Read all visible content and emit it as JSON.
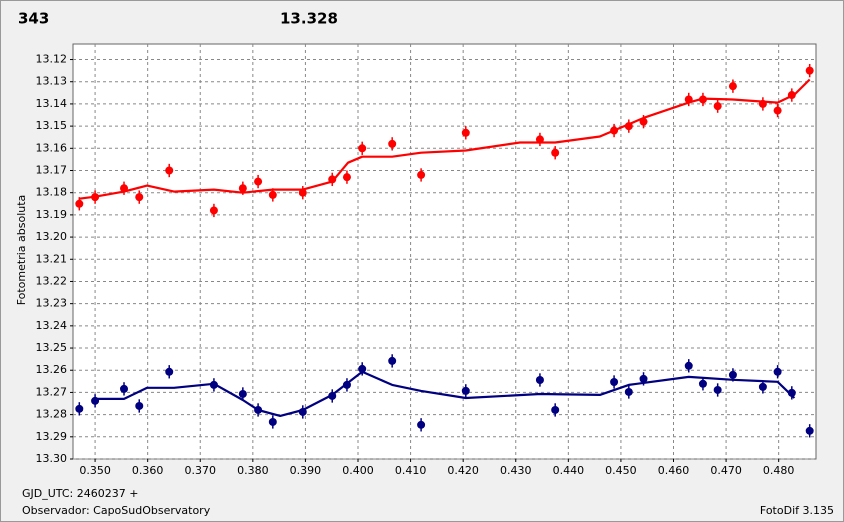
{
  "chart_data": {
    "type": "scatter",
    "annotations": [
      {
        "text": "343",
        "color": "#ff0000"
      },
      {
        "text": "13.328",
        "color": "#000080"
      },
      {
        "text": "GJD_UTC: 2460237 +"
      },
      {
        "text": "Observador: CapoSudObservatory"
      },
      {
        "text": "FotoDif 3.135"
      }
    ],
    "y_label": "Fotometria absoluta",
    "xlim": [
      0.3458,
      0.4871
    ],
    "ylim": [
      13.113,
      13.3
    ],
    "y_inverted": true,
    "grid": true,
    "xticks": [
      {
        "value": 0.35,
        "label": "0.350"
      },
      {
        "value": 0.36,
        "label": "0.360"
      },
      {
        "value": 0.37,
        "label": "0.370"
      },
      {
        "value": 0.38,
        "label": "0.380"
      },
      {
        "value": 0.39,
        "label": "0.390"
      },
      {
        "value": 0.4,
        "label": "0.400"
      },
      {
        "value": 0.41,
        "label": "0.410"
      },
      {
        "value": 0.42,
        "label": "0.420"
      },
      {
        "value": 0.43,
        "label": "0.430"
      },
      {
        "value": 0.44,
        "label": "0.440"
      },
      {
        "value": 0.45,
        "label": "0.450"
      },
      {
        "value": 0.46,
        "label": "0.460"
      },
      {
        "value": 0.47,
        "label": "0.470"
      },
      {
        "value": 0.48,
        "label": "0.480"
      }
    ],
    "yticks": [
      13.12,
      13.13,
      13.14,
      13.15,
      13.16,
      13.17,
      13.18,
      13.19,
      {
        "value": 13.2,
        "label": "13.20"
      },
      13.21,
      13.22,
      13.23,
      13.24,
      13.25,
      13.26,
      13.27,
      13.28,
      13.29,
      {
        "value": 13.3,
        "label": "13.30"
      }
    ],
    "series": [
      {
        "type": "scatter",
        "color": "#ff0000",
        "yerr": 0.003,
        "x": [
          0.347,
          0.35,
          0.3555,
          0.3584,
          0.3641,
          0.3726,
          0.3781,
          0.381,
          0.3838,
          0.3895,
          0.3951,
          0.3979,
          0.4008,
          0.4065,
          0.412,
          0.4205,
          0.4346,
          0.4375,
          0.4487,
          0.4515,
          0.4543,
          0.4629,
          0.4656,
          0.4684,
          0.4713,
          0.477,
          0.4798,
          0.4825,
          0.4859
        ],
        "values": [
          13.185,
          13.182,
          13.178,
          13.182,
          13.17,
          13.188,
          13.178,
          13.175,
          13.181,
          13.18,
          13.174,
          13.173,
          13.16,
          13.158,
          13.172,
          13.153,
          13.156,
          13.162,
          13.152,
          13.15,
          13.148,
          13.138,
          13.138,
          13.141,
          13.132,
          13.14,
          13.143,
          13.136,
          13.125
        ]
      },
      {
        "type": "line",
        "color": "#ff0000",
        "x": [
          0.347,
          0.35,
          0.3555,
          0.3599,
          0.365,
          0.3726,
          0.3781,
          0.3838,
          0.3895,
          0.3951,
          0.3981,
          0.4008,
          0.4065,
          0.412,
          0.4205,
          0.4308,
          0.4375,
          0.446,
          0.4544,
          0.4629,
          0.4656,
          0.4713,
          0.4798,
          0.483,
          0.4859
        ],
        "values": [
          13.1827,
          13.1818,
          13.1795,
          13.1768,
          13.1795,
          13.1786,
          13.18,
          13.1786,
          13.1786,
          13.175,
          13.1665,
          13.1638,
          13.1638,
          13.162,
          13.161,
          13.1574,
          13.1574,
          13.1547,
          13.1462,
          13.1394,
          13.1376,
          13.138,
          13.1394,
          13.1358,
          13.129
        ]
      },
      {
        "type": "scatter",
        "color": "#000080",
        "yerr": 0.003,
        "x": [
          0.347,
          0.35,
          0.3555,
          0.3584,
          0.3641,
          0.3726,
          0.3781,
          0.381,
          0.3838,
          0.3895,
          0.3951,
          0.3979,
          0.4008,
          0.4065,
          0.412,
          0.4205,
          0.4346,
          0.4375,
          0.4487,
          0.4515,
          0.4543,
          0.4629,
          0.4656,
          0.4684,
          0.4713,
          0.477,
          0.4798,
          0.4825,
          0.4859
        ],
        "values": [
          13.2774,
          13.2738,
          13.2684,
          13.2761,
          13.2607,
          13.2666,
          13.2707,
          13.2779,
          13.2833,
          13.2788,
          13.2716,
          13.2666,
          13.2594,
          13.2558,
          13.2846,
          13.2693,
          13.2644,
          13.2779,
          13.2653,
          13.2698,
          13.2639,
          13.258,
          13.2661,
          13.2689,
          13.2621,
          13.2675,
          13.2607,
          13.2702,
          13.2873
        ]
      },
      {
        "type": "line",
        "color": "#000080",
        "x": [
          0.35,
          0.3555,
          0.3599,
          0.365,
          0.3726,
          0.3781,
          0.381,
          0.3852,
          0.3895,
          0.3951,
          0.4008,
          0.4065,
          0.412,
          0.4205,
          0.4346,
          0.446,
          0.4515,
          0.4629,
          0.4713,
          0.4798,
          0.483
        ],
        "values": [
          13.2729,
          13.2729,
          13.2679,
          13.2679,
          13.2661,
          13.2734,
          13.2779,
          13.2806,
          13.2779,
          13.2711,
          13.2607,
          13.2666,
          13.2693,
          13.2725,
          13.2707,
          13.2711,
          13.2666,
          13.263,
          13.2643,
          13.2652,
          13.2725
        ]
      }
    ]
  }
}
